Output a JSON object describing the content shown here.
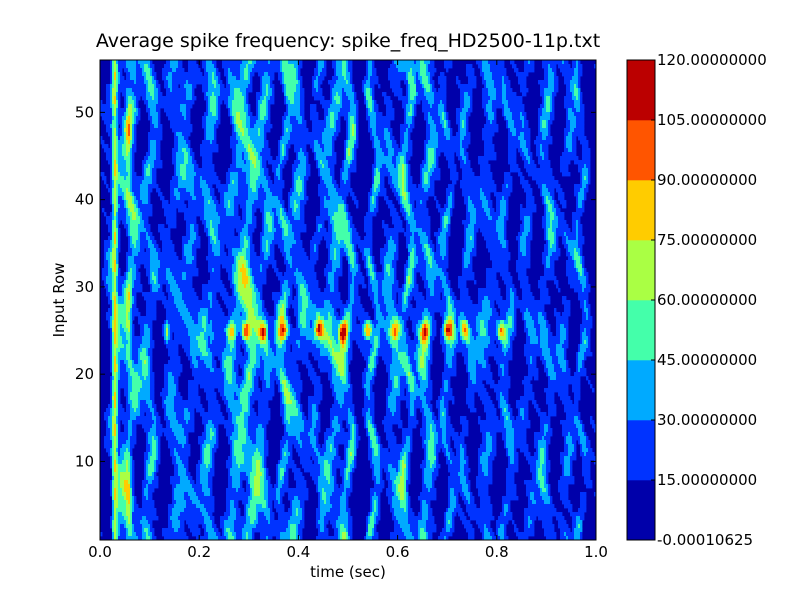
{
  "chart_data": {
    "type": "heatmap",
    "plot_kind": "filled-contour",
    "title": "Average spike frequency: spike_freq_HD2500-11p.txt",
    "xlabel": "time (sec)",
    "ylabel": "Input Row",
    "xlim": [
      0.0,
      1.0
    ],
    "ylim": [
      1,
      56
    ],
    "x_ticks": [
      "0.0",
      "0.2",
      "0.4",
      "0.6",
      "0.8",
      "1.0"
    ],
    "y_ticks": [
      "10",
      "20",
      "30",
      "40",
      "50"
    ],
    "grid": false,
    "colormap": "jet",
    "colorbar": {
      "position": "right",
      "levels": [
        "-0.00010625",
        "15.00000000",
        "30.00000000",
        "45.00000000",
        "60.00000000",
        "75.00000000",
        "90.00000000",
        "105.00000000",
        "120.00000000"
      ],
      "colors": [
        "#0000aa",
        "#0033ff",
        "#00aaff",
        "#44ffaa",
        "#aaff44",
        "#ffcc00",
        "#ff5500",
        "#bb0000"
      ]
    },
    "features": {
      "hot_row": 25,
      "vertical_bands_x": [
        0.03,
        0.06,
        0.1,
        0.15,
        0.18,
        0.22,
        0.27,
        0.3,
        0.33,
        0.37,
        0.4,
        0.44,
        0.47,
        0.5,
        0.55,
        0.59,
        0.62,
        0.66,
        0.7,
        0.74,
        0.78,
        0.82,
        0.86,
        0.9,
        0.94,
        0.97
      ],
      "peak_spots_x": [
        0.265,
        0.295,
        0.33,
        0.37,
        0.44,
        0.49,
        0.54,
        0.595,
        0.655,
        0.7,
        0.735,
        0.81
      ]
    }
  }
}
